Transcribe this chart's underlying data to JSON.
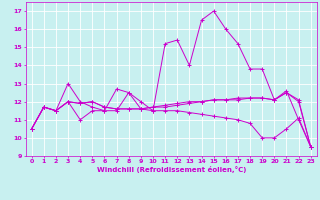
{
  "xlabel": "Windchill (Refroidissement éolien,°C)",
  "xlim": [
    -0.5,
    23.5
  ],
  "ylim": [
    9,
    17.5
  ],
  "yticks": [
    9,
    10,
    11,
    12,
    13,
    14,
    15,
    16,
    17
  ],
  "xticks": [
    0,
    1,
    2,
    3,
    4,
    5,
    6,
    7,
    8,
    9,
    10,
    11,
    12,
    13,
    14,
    15,
    16,
    17,
    18,
    19,
    20,
    21,
    22,
    23
  ],
  "bg_color": "#c8f0f0",
  "line_color": "#cc00cc",
  "grid_color": "#ffffff",
  "lines": [
    {
      "x": [
        0,
        1,
        2,
        3,
        4,
        5,
        6,
        7,
        8,
        9,
        10,
        11,
        12,
        13,
        14,
        15,
        16,
        17,
        18,
        19,
        20,
        21,
        22,
        23
      ],
      "y": [
        10.5,
        11.7,
        11.5,
        12.0,
        11.0,
        11.5,
        11.5,
        11.5,
        12.5,
        12.0,
        11.5,
        15.2,
        15.4,
        14.0,
        16.5,
        17.0,
        16.0,
        15.2,
        13.8,
        13.8,
        12.1,
        12.6,
        11.0,
        9.5
      ]
    },
    {
      "x": [
        0,
        1,
        2,
        3,
        4,
        5,
        6,
        7,
        8,
        9,
        10,
        11,
        12,
        13,
        14,
        15,
        16,
        17,
        18,
        19,
        20,
        21,
        22,
        23
      ],
      "y": [
        10.5,
        11.7,
        11.5,
        12.0,
        11.9,
        12.0,
        11.7,
        11.6,
        11.6,
        11.6,
        11.7,
        11.7,
        11.8,
        11.9,
        12.0,
        12.1,
        12.1,
        12.1,
        12.2,
        12.2,
        12.1,
        12.5,
        12.0,
        9.5
      ]
    },
    {
      "x": [
        0,
        1,
        2,
        3,
        4,
        5,
        6,
        7,
        8,
        9,
        10,
        11,
        12,
        13,
        14,
        15,
        16,
        17,
        18,
        19,
        20,
        21,
        22,
        23
      ],
      "y": [
        10.5,
        11.7,
        11.5,
        12.0,
        11.9,
        12.0,
        11.7,
        11.6,
        11.6,
        11.6,
        11.7,
        11.8,
        11.9,
        12.0,
        12.0,
        12.1,
        12.1,
        12.2,
        12.2,
        12.2,
        12.1,
        12.5,
        12.1,
        9.5
      ]
    },
    {
      "x": [
        0,
        1,
        2,
        3,
        4,
        5,
        6,
        7,
        8,
        9,
        10,
        11,
        12,
        13,
        14,
        15,
        16,
        17,
        18,
        19,
        20,
        21,
        22,
        23
      ],
      "y": [
        10.5,
        11.7,
        11.5,
        13.0,
        12.0,
        11.7,
        11.5,
        12.7,
        12.5,
        11.6,
        11.5,
        11.5,
        11.5,
        11.4,
        11.3,
        11.2,
        11.1,
        11.0,
        10.8,
        10.0,
        10.0,
        10.5,
        11.1,
        9.5
      ]
    }
  ]
}
